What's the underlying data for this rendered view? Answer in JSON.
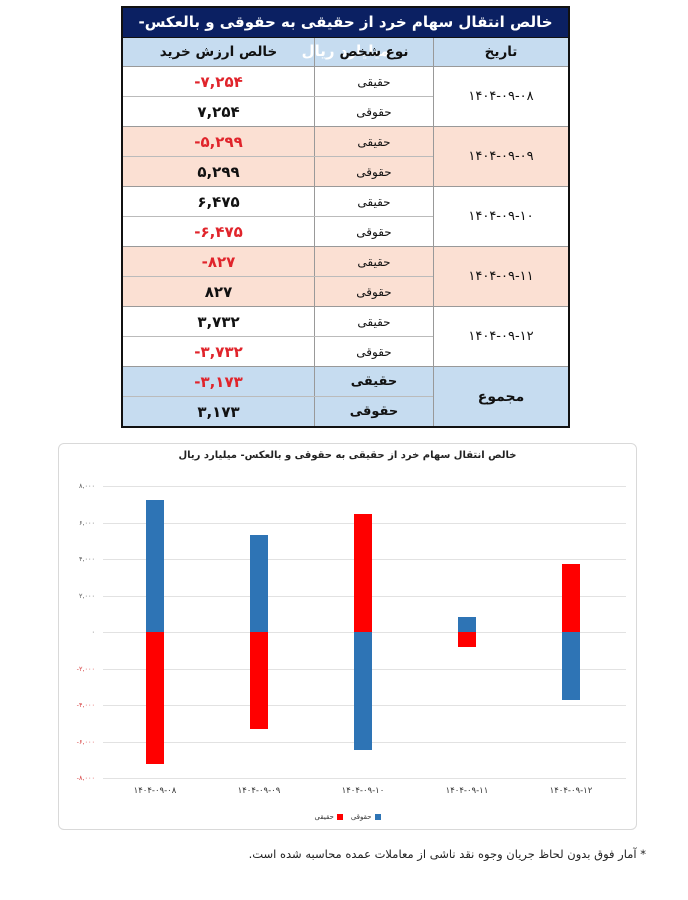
{
  "table": {
    "title": "خالص انتقال سهام خرد از حقیقی به حقوقی و بالعکس- میلیارد ریال",
    "headers": {
      "date": "تاریخ",
      "type": "نوع شخص",
      "value": "خالص ارزش خرید"
    },
    "rows": [
      {
        "date": "۱۴۰۴-۰۹-۰۸",
        "items": [
          {
            "type": "حقیقی",
            "value": "-۷,۲۵۴",
            "negative": true
          },
          {
            "type": "حقوقی",
            "value": "۷,۲۵۴",
            "negative": false
          }
        ]
      },
      {
        "date": "۱۴۰۴-۰۹-۰۹",
        "items": [
          {
            "type": "حقیقی",
            "value": "-۵,۲۹۹",
            "negative": true
          },
          {
            "type": "حقوقی",
            "value": "۵,۲۹۹",
            "negative": false
          }
        ]
      },
      {
        "date": "۱۴۰۴-۰۹-۱۰",
        "items": [
          {
            "type": "حقیقی",
            "value": "۶,۴۷۵",
            "negative": false
          },
          {
            "type": "حقوقی",
            "value": "-۶,۴۷۵",
            "negative": true
          }
        ]
      },
      {
        "date": "۱۴۰۴-۰۹-۱۱",
        "items": [
          {
            "type": "حقیقی",
            "value": "-۸۲۷",
            "negative": true
          },
          {
            "type": "حقوقی",
            "value": "۸۲۷",
            "negative": false
          }
        ]
      },
      {
        "date": "۱۴۰۴-۰۹-۱۲",
        "items": [
          {
            "type": "حقیقی",
            "value": "۳,۷۳۲",
            "negative": false
          },
          {
            "type": "حقوقی",
            "value": "-۳,۷۳۲",
            "negative": true
          }
        ]
      }
    ],
    "total": {
      "label": "مجموع",
      "items": [
        {
          "type": "حقیقی",
          "value": "-۳,۱۷۳",
          "negative": true
        },
        {
          "type": "حقوقی",
          "value": "۳,۱۷۳",
          "negative": false
        }
      ]
    },
    "colors": {
      "title_bg": "#0b2062",
      "header_bg": "#c6dcf0",
      "alt_row_bg": "#fbe0d3",
      "negative_text": "#e0242b"
    }
  },
  "chart_data": {
    "type": "bar",
    "title": "خالص انتقال سهام خرد از حقیقی به حقوقی و بالعکس- میلیارد ریال",
    "xlabel": "",
    "ylabel": "",
    "categories": [
      "۱۴۰۴-۰۹-۰۸",
      "۱۴۰۴-۰۹-۰۹",
      "۱۴۰۴-۰۹-۱۰",
      "۱۴۰۴-۰۹-۱۱",
      "۱۴۰۴-۰۹-۱۲"
    ],
    "series": [
      {
        "name": "حقیقی",
        "color": "#ff0000",
        "values": [
          -7254,
          -5299,
          6475,
          -827,
          3732
        ]
      },
      {
        "name": "حقوقی",
        "color": "#2e74b5",
        "values": [
          7254,
          5299,
          -6475,
          827,
          -3732
        ]
      }
    ],
    "ylim": [
      -8000,
      8000
    ],
    "yticks": [
      8000,
      6000,
      4000,
      2000,
      0,
      -2000,
      -4000,
      -6000,
      -8000
    ],
    "ytick_labels": [
      "۸,۰۰۰",
      "۶,۰۰۰",
      "۴,۰۰۰",
      "۲,۰۰۰",
      "۰",
      "-۲,۰۰۰",
      "-۴,۰۰۰",
      "-۶,۰۰۰",
      "-۸,۰۰۰"
    ],
    "grid": true,
    "stacked": true,
    "legend_position": "bottom"
  },
  "footnote": "* آمار فوق بدون لحاظ جریان وجوه نقد ناشی از معاملات عمده محاسبه شده است."
}
